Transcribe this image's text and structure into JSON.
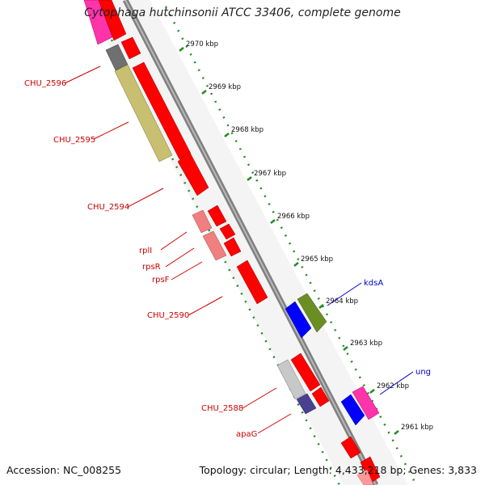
{
  "title": "Cytophaga hutchinsonii ATCC 33406, complete genome",
  "footer": {
    "accession": "Accession: NC_008255",
    "summary": "Topology: circular; Length: 4,433,218 bp; Genes: 3,833"
  },
  "ticks": [
    {
      "label": "2970 kbp",
      "kbp": 2970
    },
    {
      "label": "2969 kbp",
      "kbp": 2969
    },
    {
      "label": "2968 kbp",
      "kbp": 2968
    },
    {
      "label": "2967 kbp",
      "kbp": 2967
    },
    {
      "label": "2966 kbp",
      "kbp": 2966
    },
    {
      "label": "2965 kbp",
      "kbp": 2965
    },
    {
      "label": "2964 kbp",
      "kbp": 2964
    },
    {
      "label": "2963 kbp",
      "kbp": 2963
    },
    {
      "label": "2962 kbp",
      "kbp": 2962
    },
    {
      "label": "2961 kbp",
      "kbp": 2961
    }
  ],
  "gene_labels": [
    {
      "name": "CHU_2596",
      "color": "#cc0000"
    },
    {
      "name": "CHU_2595",
      "color": "#cc0000"
    },
    {
      "name": "CHU_2594",
      "color": "#cc0000"
    },
    {
      "name": "rplI",
      "color": "#cc0000"
    },
    {
      "name": "rpsR",
      "color": "#cc0000"
    },
    {
      "name": "rpsF",
      "color": "#cc0000"
    },
    {
      "name": "CHU_2590",
      "color": "#cc0000"
    },
    {
      "name": "CHU_2588",
      "color": "#cc0000"
    },
    {
      "name": "apaG",
      "color": "#cc0000"
    },
    {
      "name": "kdsA",
      "color": "#0000cc"
    },
    {
      "name": "ung",
      "color": "#0000cc"
    }
  ],
  "colors": {
    "cds": "#ff0000",
    "cds_light": "#f08080",
    "magenta": "#ff33aa",
    "olive": "#c8c070",
    "dark_gray": "#707070",
    "blue": "#0000ff",
    "green": "#6b8e23",
    "silver": "#c8c8c8",
    "navy": "#4a4090",
    "tick": "#228b22",
    "backbone": "#808080"
  }
}
